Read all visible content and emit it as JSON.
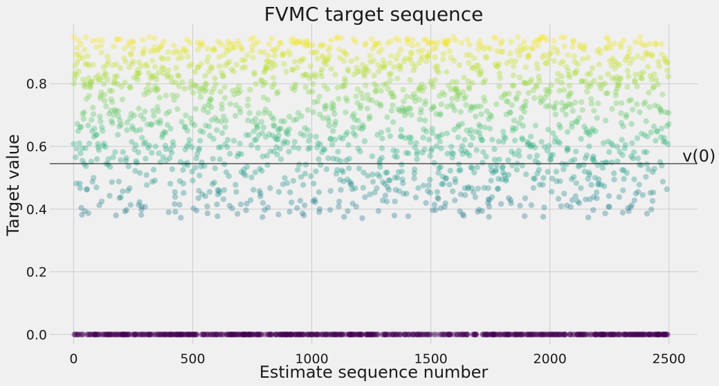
{
  "chart_data": {
    "type": "scatter",
    "title": "FVMC target sequence",
    "xlabel": "Estimate sequence number",
    "ylabel": "Target value",
    "xlim": [
      -100,
      2620
    ],
    "ylim": [
      -0.03,
      0.99
    ],
    "xticks": [
      0,
      500,
      1000,
      1500,
      2000,
      2500
    ],
    "xtick_labels": [
      "0",
      "500",
      "1000",
      "1500",
      "2000",
      "2500"
    ],
    "yticks": [
      0.0,
      0.2,
      0.4,
      0.6,
      0.8
    ],
    "ytick_labels": [
      "0.0",
      "0.2",
      "0.4",
      "0.6",
      "0.8"
    ],
    "grid": true,
    "colormap": "viridis",
    "point_alpha": 0.35,
    "n_points": 2500,
    "zero_fraction": 0.27,
    "nonzero_range": [
      0.37,
      0.95
    ],
    "reference_line": {
      "y": 0.545,
      "label": "v(0)",
      "color": "#000000"
    },
    "colors": {
      "background": "#f0f0f0",
      "grid": "#cbcbcb",
      "text": "#1a1a1a"
    }
  }
}
